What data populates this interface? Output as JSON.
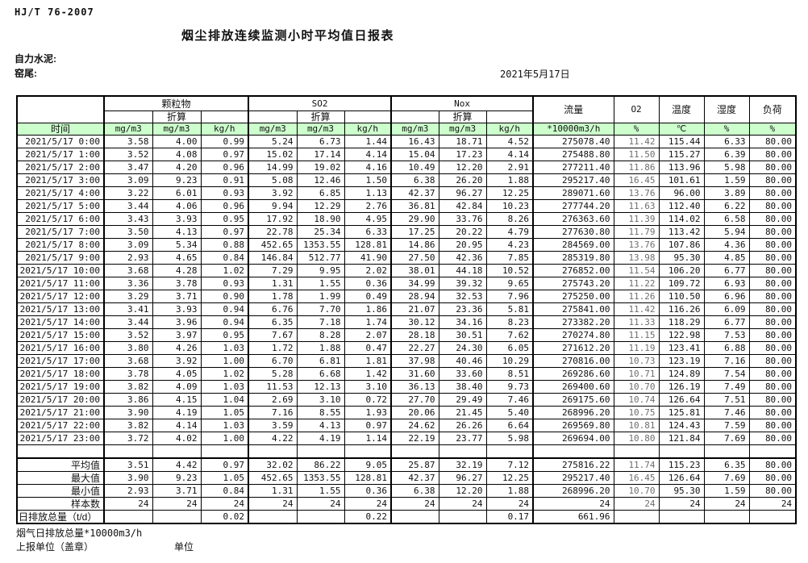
{
  "meta": {
    "standard": "HJ/T 76-2007",
    "title": "烟尘排放连续监测小时平均值日报表",
    "company": "自力水泥:",
    "location": "窑尾:",
    "date": "2021年5月17日"
  },
  "table": {
    "time_header": "时间",
    "converted_label": "折算",
    "groups": {
      "pm": "颗粒物",
      "so2": "SO2",
      "nox": "Nox"
    },
    "single_cols": {
      "flow": "流量",
      "o2": "O2",
      "temp": "温度",
      "humidity": "湿度",
      "load": "负荷"
    },
    "units": [
      "mg/m3",
      "mg/m3",
      "kg/h",
      "mg/m3",
      "mg/m3",
      "kg/h",
      "mg/m3",
      "mg/m3",
      "kg/h",
      "*10000m3/h",
      "%",
      "℃",
      "%",
      "%"
    ],
    "rows": [
      {
        "time": "2021/5/17 0:00",
        "values": [
          "3.58",
          "4.00",
          "0.99",
          "5.24",
          "6.73",
          "1.44",
          "16.43",
          "18.71",
          "4.52",
          "275078.40",
          "11.42",
          "115.44",
          "6.33",
          "80.00"
        ]
      },
      {
        "time": "2021/5/17 1:00",
        "values": [
          "3.52",
          "4.08",
          "0.97",
          "15.02",
          "17.14",
          "4.14",
          "15.04",
          "17.23",
          "4.14",
          "275488.80",
          "11.50",
          "115.27",
          "6.39",
          "80.00"
        ]
      },
      {
        "time": "2021/5/17 2:00",
        "values": [
          "3.47",
          "4.20",
          "0.96",
          "14.99",
          "19.02",
          "4.16",
          "10.49",
          "12.20",
          "2.91",
          "277211.40",
          "11.86",
          "113.96",
          "5.98",
          "80.00"
        ]
      },
      {
        "time": "2021/5/17 3:00",
        "values": [
          "3.09",
          "9.23",
          "0.91",
          "5.08",
          "12.46",
          "1.50",
          "6.38",
          "26.20",
          "1.88",
          "295217.40",
          "16.45",
          "101.61",
          "1.59",
          "80.00"
        ]
      },
      {
        "time": "2021/5/17 4:00",
        "values": [
          "3.22",
          "6.01",
          "0.93",
          "3.92",
          "6.85",
          "1.13",
          "42.37",
          "96.27",
          "12.25",
          "289071.60",
          "13.76",
          "96.00",
          "3.89",
          "80.00"
        ]
      },
      {
        "time": "2021/5/17 5:00",
        "values": [
          "3.44",
          "4.06",
          "0.96",
          "9.94",
          "12.29",
          "2.76",
          "36.81",
          "42.84",
          "10.23",
          "277744.20",
          "11.63",
          "112.40",
          "6.22",
          "80.00"
        ]
      },
      {
        "time": "2021/5/17 6:00",
        "values": [
          "3.43",
          "3.93",
          "0.95",
          "17.92",
          "18.90",
          "4.95",
          "29.90",
          "33.76",
          "8.26",
          "276363.60",
          "11.39",
          "114.02",
          "6.58",
          "80.00"
        ]
      },
      {
        "time": "2021/5/17 7:00",
        "values": [
          "3.50",
          "4.13",
          "0.97",
          "22.78",
          "25.34",
          "6.33",
          "17.25",
          "20.22",
          "4.79",
          "277630.80",
          "11.79",
          "113.42",
          "5.94",
          "80.00"
        ]
      },
      {
        "time": "2021/5/17 8:00",
        "values": [
          "3.09",
          "5.34",
          "0.88",
          "452.65",
          "1353.55",
          "128.81",
          "14.86",
          "20.95",
          "4.23",
          "284569.00",
          "13.76",
          "107.86",
          "4.36",
          "80.00"
        ]
      },
      {
        "time": "2021/5/17 9:00",
        "values": [
          "2.93",
          "4.65",
          "0.84",
          "146.84",
          "512.77",
          "41.90",
          "27.50",
          "42.36",
          "7.85",
          "285319.80",
          "13.98",
          "95.30",
          "4.85",
          "80.00"
        ]
      },
      {
        "time": "2021/5/17 10:00",
        "values": [
          "3.68",
          "4.28",
          "1.02",
          "7.29",
          "9.95",
          "2.02",
          "38.01",
          "44.18",
          "10.52",
          "276852.00",
          "11.54",
          "106.20",
          "6.77",
          "80.00"
        ]
      },
      {
        "time": "2021/5/17 11:00",
        "values": [
          "3.36",
          "3.78",
          "0.93",
          "1.31",
          "1.55",
          "0.36",
          "34.99",
          "39.32",
          "9.65",
          "275743.20",
          "11.22",
          "109.72",
          "6.93",
          "80.00"
        ]
      },
      {
        "time": "2021/5/17 12:00",
        "values": [
          "3.29",
          "3.71",
          "0.90",
          "1.78",
          "1.99",
          "0.49",
          "28.94",
          "32.53",
          "7.96",
          "275250.00",
          "11.26",
          "110.50",
          "6.96",
          "80.00"
        ]
      },
      {
        "time": "2021/5/17 13:00",
        "values": [
          "3.41",
          "3.93",
          "0.94",
          "6.76",
          "7.70",
          "1.86",
          "21.07",
          "23.36",
          "5.81",
          "275841.00",
          "11.42",
          "116.26",
          "6.09",
          "80.00"
        ]
      },
      {
        "time": "2021/5/17 14:00",
        "values": [
          "3.44",
          "3.96",
          "0.94",
          "6.35",
          "7.18",
          "1.74",
          "30.12",
          "34.16",
          "8.23",
          "273382.20",
          "11.33",
          "118.29",
          "6.77",
          "80.00"
        ]
      },
      {
        "time": "2021/5/17 15:00",
        "values": [
          "3.52",
          "3.97",
          "0.95",
          "7.67",
          "8.28",
          "2.07",
          "28.18",
          "30.51",
          "7.62",
          "270274.80",
          "11.15",
          "122.98",
          "7.53",
          "80.00"
        ]
      },
      {
        "time": "2021/5/17 16:00",
        "values": [
          "3.80",
          "4.26",
          "1.03",
          "1.72",
          "1.88",
          "0.47",
          "22.27",
          "24.30",
          "6.05",
          "271612.20",
          "11.19",
          "123.41",
          "6.88",
          "80.00"
        ]
      },
      {
        "time": "2021/5/17 17:00",
        "values": [
          "3.68",
          "3.92",
          "1.00",
          "6.70",
          "6.81",
          "1.81",
          "37.98",
          "40.46",
          "10.29",
          "270816.00",
          "10.73",
          "123.19",
          "7.16",
          "80.00"
        ]
      },
      {
        "time": "2021/5/17 18:00",
        "values": [
          "3.78",
          "4.05",
          "1.02",
          "5.28",
          "6.68",
          "1.42",
          "31.60",
          "33.60",
          "8.51",
          "269286.60",
          "10.71",
          "124.89",
          "7.54",
          "80.00"
        ]
      },
      {
        "time": "2021/5/17 19:00",
        "values": [
          "3.82",
          "4.09",
          "1.03",
          "11.53",
          "12.13",
          "3.10",
          "36.13",
          "38.40",
          "9.73",
          "269400.60",
          "10.70",
          "126.19",
          "7.49",
          "80.00"
        ]
      },
      {
        "time": "2021/5/17 20:00",
        "values": [
          "3.86",
          "4.15",
          "1.04",
          "2.69",
          "3.10",
          "0.72",
          "27.70",
          "29.49",
          "7.46",
          "269175.60",
          "10.74",
          "126.64",
          "7.51",
          "80.00"
        ]
      },
      {
        "time": "2021/5/17 21:00",
        "values": [
          "3.90",
          "4.19",
          "1.05",
          "7.16",
          "8.55",
          "1.93",
          "20.06",
          "21.45",
          "5.40",
          "268996.20",
          "10.75",
          "125.81",
          "7.46",
          "80.00"
        ]
      },
      {
        "time": "2021/5/17 22:00",
        "values": [
          "3.82",
          "4.14",
          "1.03",
          "3.59",
          "4.13",
          "0.97",
          "24.62",
          "26.26",
          "6.64",
          "269569.80",
          "10.81",
          "124.43",
          "7.59",
          "80.00"
        ]
      },
      {
        "time": "2021/5/17 23:00",
        "values": [
          "3.72",
          "4.02",
          "1.00",
          "4.22",
          "4.19",
          "1.14",
          "22.19",
          "23.77",
          "5.98",
          "269694.00",
          "10.80",
          "121.84",
          "7.69",
          "80.00"
        ]
      }
    ],
    "summary_rows": [
      {
        "label": "平均值",
        "values": [
          "3.51",
          "4.42",
          "0.97",
          "32.02",
          "86.22",
          "9.05",
          "25.87",
          "32.19",
          "7.12",
          "275816.22",
          "11.74",
          "115.23",
          "6.35",
          "80.00"
        ]
      },
      {
        "label": "最大值",
        "values": [
          "3.90",
          "9.23",
          "1.05",
          "452.65",
          "1353.55",
          "128.81",
          "42.37",
          "96.27",
          "12.25",
          "295217.40",
          "16.45",
          "126.64",
          "7.69",
          "80.00"
        ]
      },
      {
        "label": "最小值",
        "values": [
          "2.93",
          "3.71",
          "0.84",
          "1.31",
          "1.55",
          "0.36",
          "6.38",
          "12.20",
          "1.88",
          "268996.20",
          "10.70",
          "95.30",
          "1.59",
          "80.00"
        ]
      },
      {
        "label": "样本数",
        "values": [
          "24",
          "24",
          "24",
          "24",
          "24",
          "24",
          "24",
          "24",
          "24",
          "24",
          "24",
          "24",
          "24",
          "24"
        ]
      },
      {
        "label": "日排放总量（t/d）",
        "label_align": "left",
        "values": [
          "",
          "",
          "0.02",
          "",
          "",
          "0.22",
          "",
          "",
          "0.17",
          "661.96",
          "",
          "",
          "",
          ""
        ]
      }
    ]
  },
  "footer": {
    "flue_total": "烟气日排放总量*10000m3/h",
    "report_unit": "上报单位（盖章）",
    "unit_label": "单位"
  }
}
